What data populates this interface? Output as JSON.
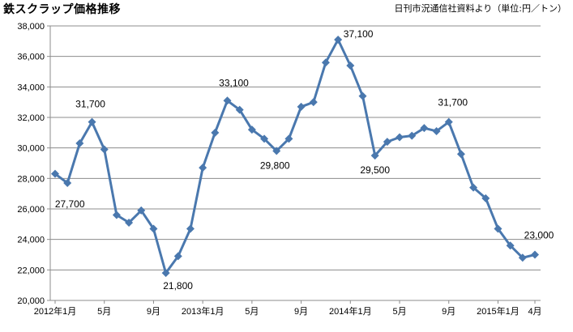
{
  "chart_data": {
    "type": "line",
    "title": "鉄スクラップ価格推移",
    "source_note": "日刊市況通信社資料より（単位:円／トン）",
    "ylim": [
      20000,
      38000
    ],
    "y_ticks": [
      "20,000",
      "22,000",
      "24,000",
      "26,000",
      "28,000",
      "30,000",
      "32,000",
      "34,000",
      "36,000",
      "38,000"
    ],
    "x_ticks": [
      {
        "index": 0,
        "label": "2012年1月"
      },
      {
        "index": 4,
        "label": "5月"
      },
      {
        "index": 8,
        "label": "9月"
      },
      {
        "index": 12,
        "label": "2013年1月"
      },
      {
        "index": 16,
        "label": "5月"
      },
      {
        "index": 20,
        "label": "9月"
      },
      {
        "index": 24,
        "label": "2014年1月"
      },
      {
        "index": 28,
        "label": "5月"
      },
      {
        "index": 32,
        "label": "9月"
      },
      {
        "index": 36,
        "label": "2015年1月"
      },
      {
        "index": 39,
        "label": "4月"
      }
    ],
    "grid": true,
    "series": [
      {
        "color": "#4A78AE",
        "values": [
          28300,
          27700,
          30300,
          31700,
          29900,
          25600,
          25100,
          25900,
          24700,
          21800,
          22900,
          24700,
          28700,
          31000,
          33100,
          32500,
          31200,
          30600,
          29800,
          30600,
          32700,
          33000,
          35600,
          37100,
          35400,
          33400,
          29500,
          30400,
          30700,
          30800,
          31300,
          31100,
          31700,
          29600,
          27400,
          26700,
          24700,
          23600,
          22800,
          23000
        ]
      }
    ],
    "data_labels": [
      {
        "index": 1,
        "text": "27,700"
      },
      {
        "index": 3,
        "text": "31,700"
      },
      {
        "index": 9,
        "text": "21,800"
      },
      {
        "index": 14,
        "text": "33,100"
      },
      {
        "index": 18,
        "text": "29,800"
      },
      {
        "index": 23,
        "text": "37,100"
      },
      {
        "index": 26,
        "text": "29,500"
      },
      {
        "index": 32,
        "text": "31,700"
      },
      {
        "index": 39,
        "text": "23,000"
      }
    ]
  }
}
